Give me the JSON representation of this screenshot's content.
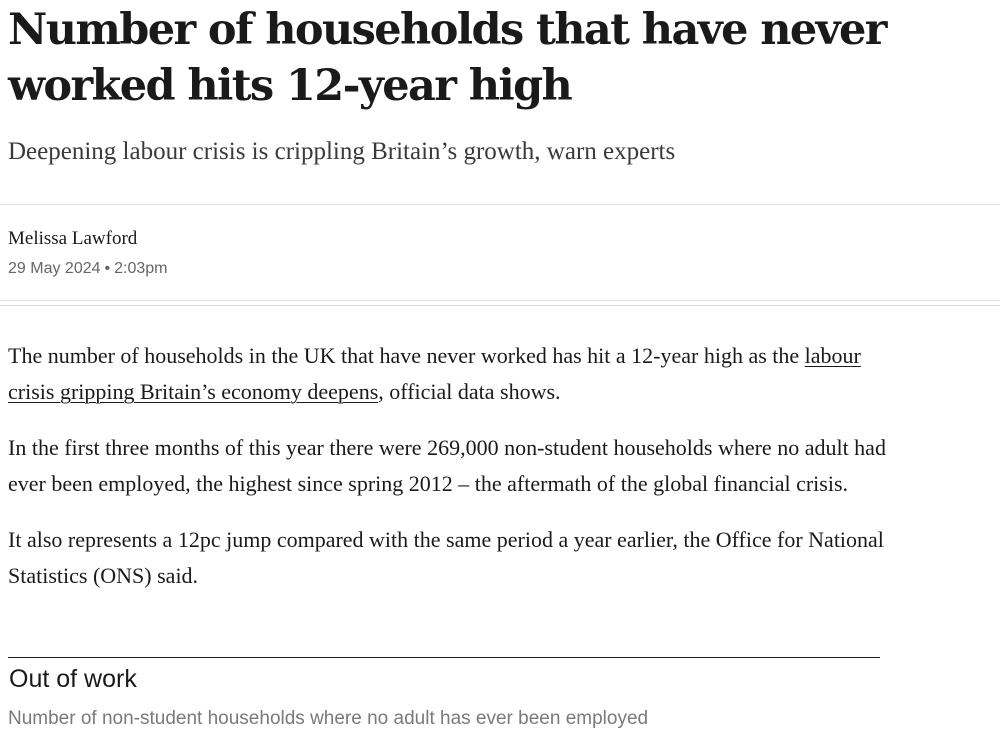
{
  "article": {
    "headline": "Number of households that have never worked hits 12-year high",
    "subheadline": "Deepening labour crisis is crippling Britain’s growth, warn experts",
    "author": "Melissa Lawford",
    "date": "29 May 2024",
    "date_separator": "•",
    "time": "2:03pm",
    "paragraphs": [
      {
        "before_link": "The number of households in the UK that have never worked has hit a 12-year high as the ",
        "link_text": "labour crisis gripping Britain’s economy deepens",
        "after_link": ", official data shows."
      },
      {
        "text": "In the first three months of this year there were 269,000 non-student households where no adult had ever been employed, the highest since spring 2012 – the aftermath of the global financial crisis."
      },
      {
        "text": "It also represents a 12pc jump compared with the same period a year earlier, the Office for National Statistics (ONS) said."
      }
    ]
  },
  "chart_header": {
    "title": "Out of work",
    "subtitle": "Number of non-student households where no adult has ever been employed"
  }
}
